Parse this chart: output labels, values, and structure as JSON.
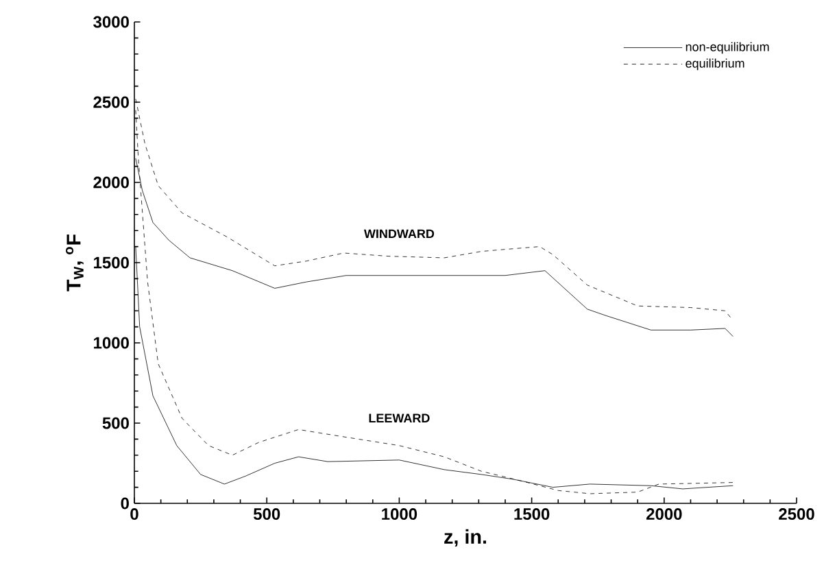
{
  "chart_data": {
    "type": "line",
    "xlabel": "z, in.",
    "ylabel": "T$_{W}$, $^{o}$F",
    "xlim": [
      0,
      2500
    ],
    "ylim": [
      0,
      3000
    ],
    "xticks": [
      0,
      500,
      1000,
      1500,
      2000,
      2500
    ],
    "yticks": [
      0,
      500,
      1000,
      1500,
      2000,
      2500,
      3000
    ],
    "legend": "top right",
    "grid": false,
    "marker": "none",
    "annotations": [
      "WINDWARD",
      "LEEWARD"
    ],
    "series": [
      {
        "name": "non-equilibrium",
        "color": "#000000",
        "line_style": "solid",
        "x": [
          5,
          30,
          70,
          130,
          210,
          370,
          530,
          650,
          800,
          1000,
          1200,
          1400,
          1550,
          1710,
          1780,
          1950,
          2100,
          2230,
          2260
        ],
        "values": [
          2150,
          1950,
          1750,
          1640,
          1530,
          1450,
          1340,
          1380,
          1420,
          1420,
          1420,
          1420,
          1450,
          1210,
          1170,
          1080,
          1080,
          1090,
          1040
        ]
      },
      {
        "name": "equilibrium",
        "color": "#000000",
        "line_style": "dashed",
        "x": [
          5,
          40,
          90,
          180,
          350,
          530,
          650,
          790,
          960,
          1170,
          1310,
          1380,
          1530,
          1580,
          1710,
          1900,
          2100,
          2230,
          2260
        ],
        "values": [
          2520,
          2240,
          1980,
          1810,
          1660,
          1480,
          1510,
          1560,
          1540,
          1530,
          1570,
          1580,
          1600,
          1550,
          1360,
          1230,
          1220,
          1200,
          1140
        ]
      },
      {
        "color": "#000000",
        "line_style": "solid",
        "x": [
          5,
          20,
          70,
          160,
          250,
          340,
          420,
          530,
          620,
          730,
          1000,
          1170,
          1310,
          1430,
          1580,
          1720,
          1950,
          2070,
          2260
        ],
        "values": [
          1600,
          1100,
          670,
          360,
          180,
          120,
          170,
          250,
          290,
          260,
          270,
          210,
          180,
          150,
          100,
          120,
          110,
          90,
          110
        ]
      },
      {
        "color": "#000000",
        "line_style": "dashed",
        "x": [
          5,
          15,
          50,
          90,
          180,
          280,
          370,
          470,
          620,
          770,
          1000,
          1170,
          1310,
          1460,
          1600,
          1720,
          1900,
          1980,
          2260
        ],
        "values": [
          2450,
          2150,
          1380,
          870,
          530,
          360,
          300,
          380,
          460,
          420,
          360,
          290,
          200,
          140,
          80,
          60,
          70,
          120,
          130
        ]
      }
    ]
  }
}
